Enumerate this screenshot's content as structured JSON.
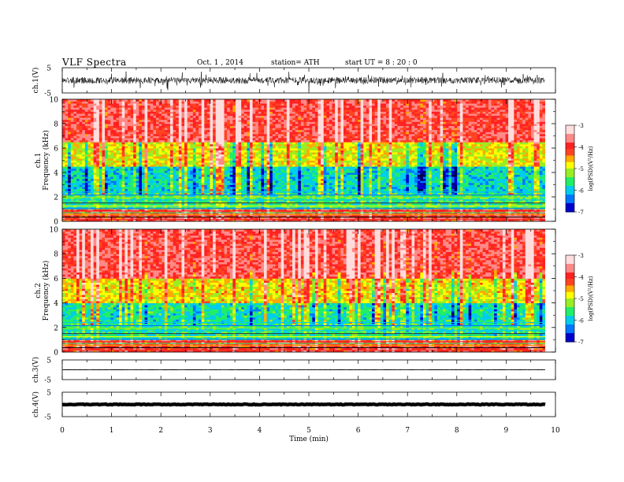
{
  "header": {
    "title": "VLF Spectra",
    "date": "Oct. 1 , 2014",
    "station": "station= ATH",
    "start": "start UT = 8 : 20 : 0"
  },
  "colors": {
    "colormap": [
      "#000044",
      "#0000cc",
      "#0088ff",
      "#00ddbb",
      "#33ee33",
      "#ffff00",
      "#ff9900",
      "#ff2222",
      "#ff9999",
      "#ffffff"
    ],
    "trace": "#000000"
  },
  "chart_data": [
    {
      "type": "line",
      "panel": "ch1-waveform",
      "ylabel": "ch.1(V)",
      "ylim": [
        -5,
        5
      ],
      "yticks": [
        "5",
        "-5"
      ],
      "x_range_min": [
        0,
        9.8
      ],
      "description_values": {
        "amplitude_typical": [
          -1.8,
          1.8
        ],
        "offset": 0
      }
    },
    {
      "type": "heatmap",
      "panel": "ch1-spectrogram",
      "ylabel": "ch.1\nFrequency (kHz)",
      "ylim": [
        0,
        10
      ],
      "yticks": [
        "0",
        "2",
        "4",
        "6",
        "8",
        "10"
      ],
      "xlim": [
        0,
        9.8
      ],
      "colorbar": {
        "label": "log(PSD)(V²/Hz)",
        "range": [
          -7,
          -3
        ],
        "ticks": [
          "-3",
          "-4",
          "-5",
          "-6",
          "-7"
        ]
      },
      "bands": [
        {
          "f_range_kHz": [
            0,
            1.0
          ],
          "logPSD": -4.0
        },
        {
          "f_range_kHz": [
            1.0,
            2.4
          ],
          "logPSD": -5.6
        },
        {
          "f_range_kHz": [
            2.4,
            4.5
          ],
          "logPSD": -5.9
        },
        {
          "f_range_kHz": [
            4.5,
            6.5
          ],
          "logPSD": -4.9
        },
        {
          "f_range_kHz": [
            6.5,
            10
          ],
          "logPSD": -3.9
        }
      ]
    },
    {
      "type": "heatmap",
      "panel": "ch2-spectrogram",
      "ylabel": "ch.2\nFrequency (kHz)",
      "ylim": [
        0,
        10
      ],
      "yticks": [
        "0",
        "2",
        "4",
        "6",
        "8",
        "10"
      ],
      "xlim": [
        0,
        9.8
      ],
      "colorbar": {
        "label": "log(PSD)(V²/Hz)",
        "range": [
          -7,
          -3
        ],
        "ticks": [
          "-3",
          "-4",
          "-5",
          "-6",
          "-7"
        ]
      },
      "bands": [
        {
          "f_range_kHz": [
            0,
            1.0
          ],
          "logPSD": -4.0
        },
        {
          "f_range_kHz": [
            1.0,
            2.4
          ],
          "logPSD": -5.7
        },
        {
          "f_range_kHz": [
            2.4,
            4.0
          ],
          "logPSD": -5.8
        },
        {
          "f_range_kHz": [
            4.0,
            6.0
          ],
          "logPSD": -4.8
        },
        {
          "f_range_kHz": [
            6.0,
            10
          ],
          "logPSD": -3.9
        }
      ]
    },
    {
      "type": "line",
      "panel": "ch3-waveform",
      "ylabel": "ch.3(V)",
      "ylim": [
        -5,
        5
      ],
      "yticks": [
        "5",
        "-5"
      ],
      "level": 0,
      "amplitude": 0.1
    },
    {
      "type": "line",
      "panel": "ch4-waveform",
      "ylabel": "ch.4(V)",
      "ylim": [
        -5,
        5
      ],
      "yticks": [
        "5",
        "-5"
      ],
      "level": 0,
      "amplitude": 0.3
    }
  ],
  "xaxis": {
    "label": "Time (min)",
    "ticks": [
      "0",
      "1",
      "2",
      "3",
      "4",
      "5",
      "6",
      "7",
      "8",
      "9",
      "10"
    ],
    "xlim": [
      0,
      10
    ]
  }
}
